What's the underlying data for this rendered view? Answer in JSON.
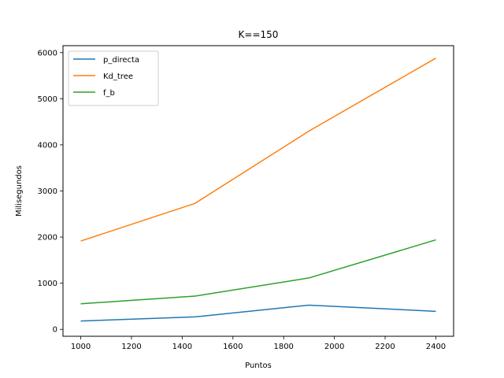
{
  "chart_data": {
    "type": "line",
    "title": "K==150",
    "xlabel": "Puntos",
    "ylabel": "Milisegundos",
    "x": [
      1000,
      1450,
      1900,
      2400
    ],
    "xlim": [
      930,
      2470
    ],
    "ylim": [
      -150,
      6150
    ],
    "xticks": [
      1000,
      1200,
      1400,
      1600,
      1800,
      2000,
      2200,
      2400
    ],
    "yticks": [
      0,
      1000,
      2000,
      3000,
      4000,
      5000,
      6000
    ],
    "grid": false,
    "legend_position": "top-left",
    "series": [
      {
        "name": "p_directa",
        "color": "#1f77b4",
        "values": [
          180,
          270,
          525,
          390
        ]
      },
      {
        "name": "Kd_tree",
        "color": "#ff7f0e",
        "values": [
          1915,
          2730,
          4300,
          5880
        ]
      },
      {
        "name": "f_b",
        "color": "#2ca02c",
        "values": [
          555,
          720,
          1115,
          1940
        ]
      }
    ]
  }
}
